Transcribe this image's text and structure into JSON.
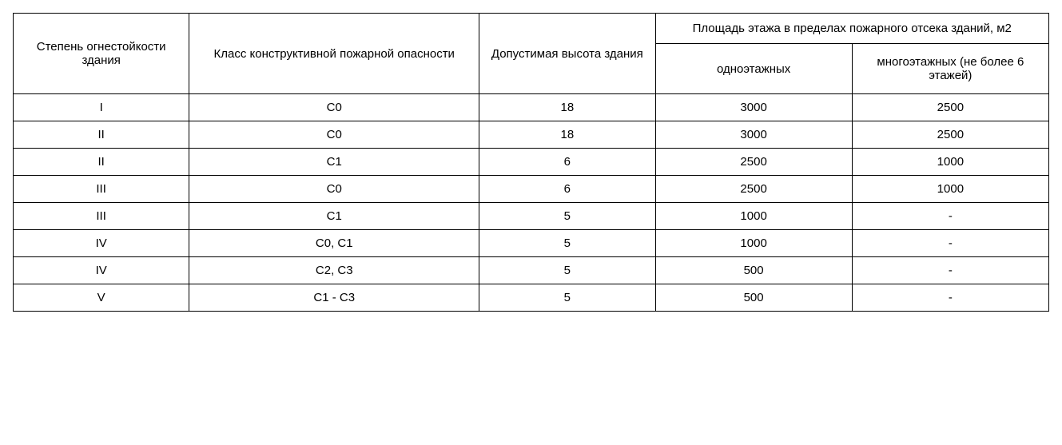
{
  "table": {
    "type": "table",
    "background_color": "#ffffff",
    "border_color": "#000000",
    "text_color": "#000000",
    "font_size_pt": 11,
    "font_family": "Arial",
    "header": {
      "col1": "Степень огнестойкости здания",
      "col2": "Класс конструктивной пожарной опасности",
      "col3": "Допустимая высота здания",
      "col4_group": "Площадь этажа в пределах пожарного отсека зданий, м2",
      "col4_sub1": "одноэтажных",
      "col4_sub2": "многоэтажных (не более 6 этажей)"
    },
    "columns_width_pct": [
      17,
      28,
      17,
      19,
      19
    ],
    "rows": [
      {
        "c1": "I",
        "c2": "С0",
        "c3": "18",
        "c4": "3000",
        "c5": "2500"
      },
      {
        "c1": "II",
        "c2": "С0",
        "c3": "18",
        "c4": "3000",
        "c5": "2500"
      },
      {
        "c1": "II",
        "c2": "С1",
        "c3": "6",
        "c4": "2500",
        "c5": "1000"
      },
      {
        "c1": "III",
        "c2": "С0",
        "c3": "6",
        "c4": "2500",
        "c5": "1000"
      },
      {
        "c1": "III",
        "c2": "С1",
        "c3": "5",
        "c4": "1000",
        "c5": "-"
      },
      {
        "c1": "IV",
        "c2": "С0, С1",
        "c3": "5",
        "c4": "1000",
        "c5": "-"
      },
      {
        "c1": "IV",
        "c2": "С2, С3",
        "c3": "5",
        "c4": "500",
        "c5": "-"
      },
      {
        "c1": "V",
        "c2": "С1 - С3",
        "c3": "5",
        "c4": "500",
        "c5": "-"
      }
    ]
  }
}
